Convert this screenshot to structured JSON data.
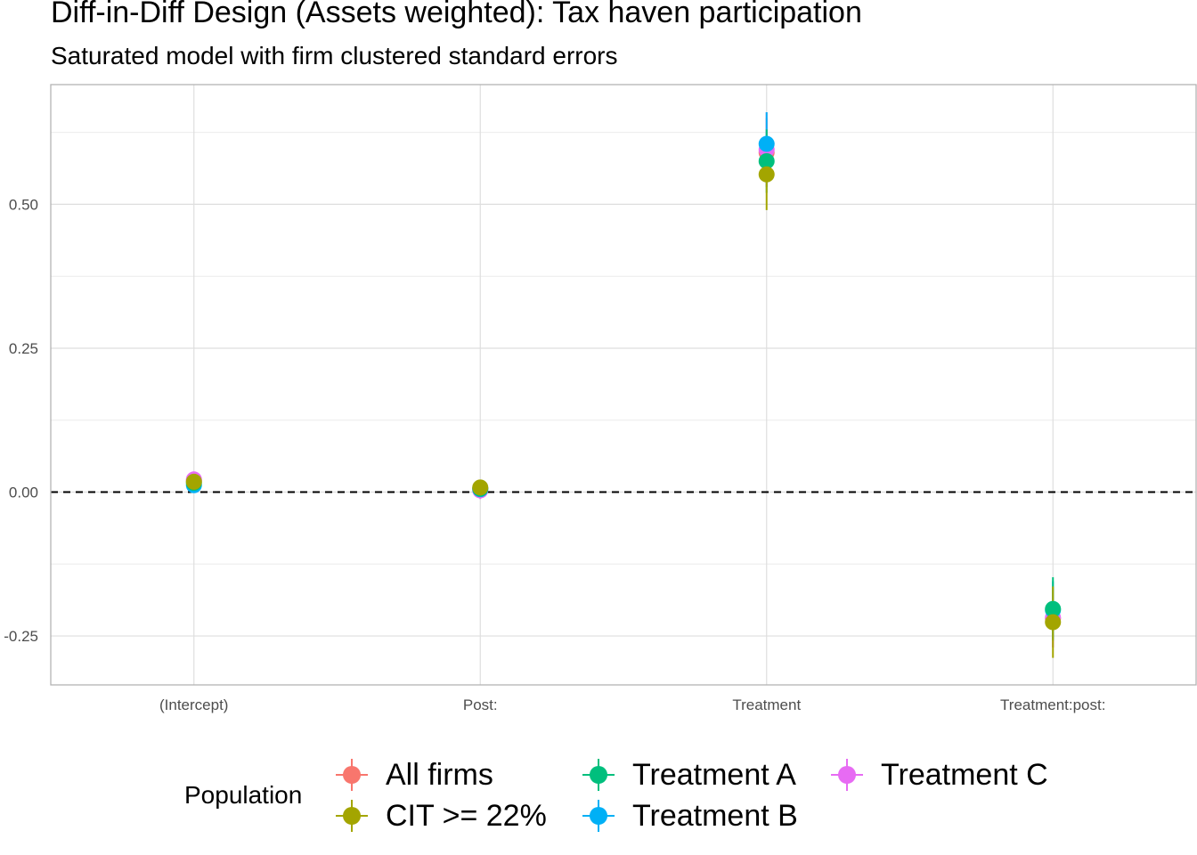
{
  "chart_data": {
    "type": "scatter",
    "title": "Diff-in-Diff Design (Assets weighted): Tax haven participation",
    "subtitle": "Saturated model with firm clustered standard errors",
    "xlabel": "",
    "ylabel": "",
    "categories": [
      "(Intercept)",
      "Post:",
      "Treatment",
      "Treatment:post:"
    ],
    "y_ticks": [
      -0.25,
      0.0,
      0.25,
      0.5
    ],
    "y_tick_labels": [
      "-0.25",
      "0.00",
      "0.25",
      "0.50"
    ],
    "ylim": [
      -0.335,
      0.708
    ],
    "grid": true,
    "reference_line": 0,
    "legend_position": "bottom",
    "legend_title": "Population",
    "series": [
      {
        "name": "All firms",
        "color": "#F8766D",
        "values": [
          0.02,
          0.007,
          0.59,
          -0.22
        ],
        "lower": [
          0.012,
          -0.002,
          0.53,
          -0.27
        ],
        "upper": [
          0.028,
          0.016,
          0.65,
          -0.17
        ]
      },
      {
        "name": "CIT >= 22%",
        "color": "#A3A500",
        "values": [
          0.018,
          0.008,
          0.552,
          -0.226
        ],
        "lower": [
          0.01,
          -0.001,
          0.49,
          -0.288
        ],
        "upper": [
          0.026,
          0.017,
          0.614,
          -0.164
        ]
      },
      {
        "name": "Treatment A",
        "color": "#00BF7D",
        "values": [
          0.016,
          0.006,
          0.575,
          -0.203
        ],
        "lower": [
          0.008,
          -0.003,
          0.52,
          -0.258
        ],
        "upper": [
          0.024,
          0.015,
          0.63,
          -0.148
        ]
      },
      {
        "name": "Treatment B",
        "color": "#00B0F6",
        "values": [
          0.012,
          0.005,
          0.605,
          -0.205
        ],
        "lower": [
          0.004,
          -0.004,
          0.555,
          -0.255
        ],
        "upper": [
          0.02,
          0.014,
          0.66,
          -0.155
        ]
      },
      {
        "name": "Treatment C",
        "color": "#E76BF3",
        "values": [
          0.022,
          0.003,
          0.595,
          -0.218
        ],
        "lower": [
          0.014,
          -0.012,
          0.53,
          -0.27
        ],
        "upper": [
          0.03,
          0.018,
          0.66,
          -0.166
        ]
      }
    ]
  }
}
